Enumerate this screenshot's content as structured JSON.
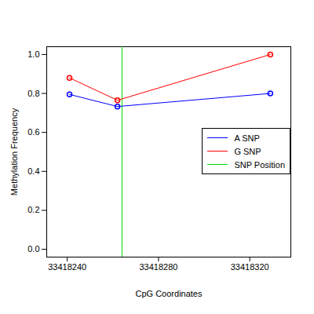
{
  "chart_data": {
    "type": "line",
    "x_label": "CpG Coordinates",
    "y_label": "Methylation Frequency",
    "x": [
      33418241,
      33418262,
      33418329
    ],
    "series": [
      {
        "name": "A SNP",
        "color": "#0000ff",
        "marker": "circle",
        "values": [
          0.795,
          0.733,
          0.8
        ]
      },
      {
        "name": "G SNP",
        "color": "#ff0000",
        "marker": "circle",
        "values": [
          0.88,
          0.765,
          1.0
        ]
      }
    ],
    "snp_position": {
      "name": "SNP Position",
      "x": 33418264,
      "color": "#00dd00"
    },
    "xlim": [
      33418231,
      33418338
    ],
    "ylim": [
      -0.04,
      1.04
    ],
    "xticks": [
      33418240,
      33418280,
      33418320
    ],
    "yticks": [
      {
        "value": 0,
        "label": "0.0"
      },
      {
        "value": 0.2,
        "label": "0.2"
      },
      {
        "value": 0.4,
        "label": "0.4"
      },
      {
        "value": 0.6,
        "label": "0.6"
      },
      {
        "value": 0.8,
        "label": "0.8"
      },
      {
        "value": 1,
        "label": "1.0"
      }
    ],
    "legend": "right",
    "grid": false
  }
}
